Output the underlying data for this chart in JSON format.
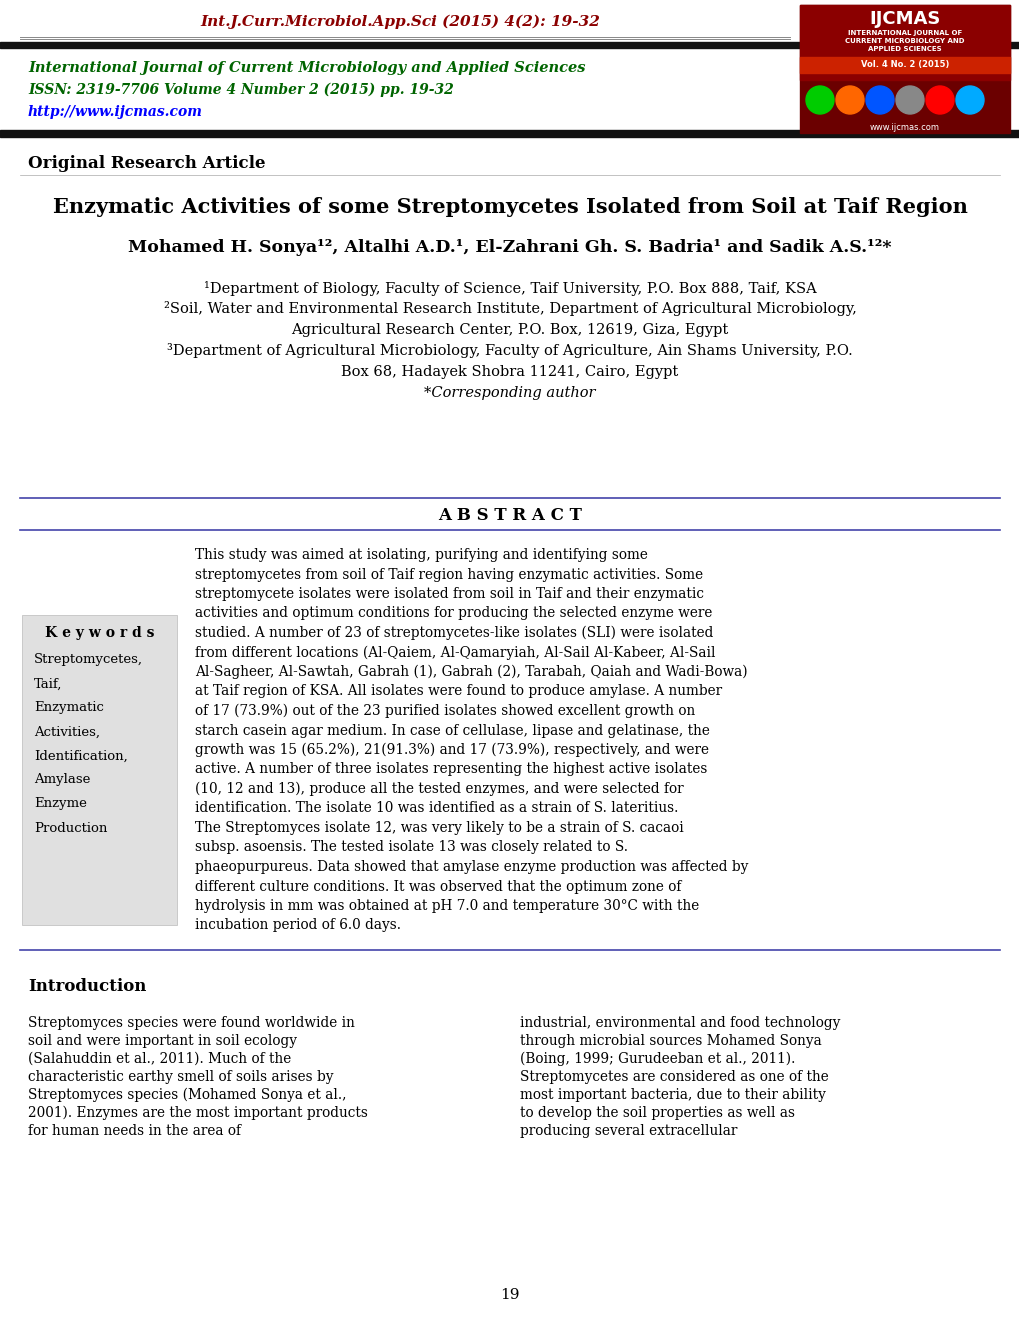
{
  "header_journal_text": "Int.J.Curr.Microbiol.App.Sci (2015) 4(2): 19-32",
  "header_journal_color": "#8B0000",
  "journal_title_line1": "International Journal of Current Microbiology and Applied Sciences",
  "journal_issn": "ISSN: 2319-7706 Volume 4 Number 2 (2015) pp. 19-32",
  "journal_url": "http://www.ijcmas.com",
  "section_label": "Original Research Article",
  "paper_title": "Enzymatic Activities of some Streptomycetes Isolated from Soil at Taif Region",
  "authors": "Mohamed H. Sonya¹², Altalhi A.D.¹, El-Zahrani Gh. S. Badria¹ and Sadik A.S.¹²*",
  "affil1": "¹Department of Biology, Faculty of Science, Taif University, P.O. Box 888, Taif, KSA",
  "affil2": "²Soil, Water and Environmental Research Institute, Department of Agricultural Microbiology,",
  "affil2b": "Agricultural Research Center, P.O. Box, 12619, Giza, Egypt",
  "affil3": "³Department of Agricultural Microbiology, Faculty of Agriculture, Ain Shams University, P.O.",
  "affil3b": "Box 68, Hadayek Shobra 11241, Cairo, Egypt",
  "corresponding": "*Corresponding author",
  "abstract_title": "A B S T R A C T",
  "keywords_title": "K e y w o r d s",
  "keywords_list": [
    "Streptomycetes,",
    "Taif,",
    "Enzymatic",
    "Activities,",
    "Identification,",
    "Amylase",
    "Enzyme",
    "Production"
  ],
  "abstract_text": "This study was aimed at isolating, purifying and identifying some streptomycetes from soil of Taif region having enzymatic activities. Some streptomycete isolates were isolated from soil in Taif and their enzymatic activities and optimum conditions for producing the selected enzyme were studied. A number of 23 of streptomycetes-like isolates (SLI) were isolated from different locations (Al-Qaiem, Al-Qamaryiah, Al-Sail Al-Kabeer, Al-Sail Al-Sagheer, Al-Sawtah, Gabrah (1), Gabrah (2), Tarabah, Qaiah and Wadi-Bowa) at Taif region of KSA. All isolates were found to produce amylase. A number of 17 (73.9%) out of the 23 purified isolates showed excellent growth on starch casein agar medium. In case of cellulase, lipase and gelatinase, the growth was 15 (65.2%), 21(91.3%) and 17 (73.9%), respectively, and were active. A number of three isolates representing the highest active isolates (10, 12 and 13), produce all the tested enzymes, and were selected for identification. The isolate 10 was identified as a strain of S. lateritius. The Streptomyces isolate 12, was very likely to be a strain of S. cacaoi subsp. asoensis. The tested isolate 13 was closely related to S. phaeopurpureus. Data showed that amylase enzyme production was affected by different culture conditions. It was observed that the optimum zone of hydrolysis in mm was obtained at pH 7.0 and temperature 30°C with the incubation period of 6.0 days.",
  "intro_title": "Introduction",
  "intro_col1": "Streptomyces species were found worldwide in soil and were important in soil ecology (Salahuddin et al., 2011). Much of the characteristic earthy smell of soils arises by Streptomyces species (Mohamed Sonya et al., 2001). Enzymes are the most important products for human needs in the area of",
  "intro_col2": "industrial, environmental and food technology through microbial sources Mohamed Sonya (Boing, 1999; Gurudeeban et al., 2011). Streptomycetes are considered as one of the most important bacteria, due to their ability to develop the soil properties as well as producing several extracellular",
  "page_number": "19",
  "bg_color": "#ffffff",
  "text_color": "#000000",
  "green_color": "#006400",
  "blue_color": "#0000FF",
  "dark_red": "#8B0000",
  "separator_color": "#4444aa",
  "header_bar_color": "#111111"
}
